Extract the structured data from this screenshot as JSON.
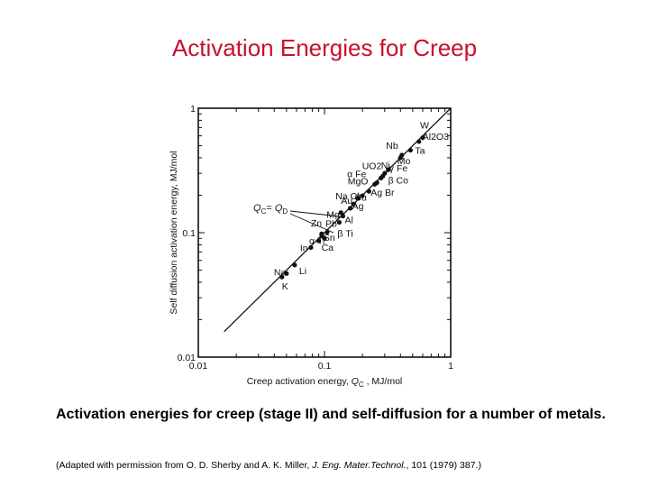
{
  "slide_title": "Activation Energies for Creep",
  "caption_pre": "Activation energies for creep (stage ",
  "caption_stage": "II",
  "caption_post": ") and self-diffusion for a number of metals.",
  "credit": {
    "pre": "(Adapted with permission from O. D. Sherby and A. K. Miller, ",
    "journal": "J. Eng. Mater.Technol.",
    "post": ", 101 (1979) 387.)"
  },
  "chart_data": {
    "type": "scatter",
    "xlabel": "Creep activation energy, Q_C , MJ/mol",
    "ylabel": "Self diffusion activation energy, MJ/mol",
    "xscale": "log",
    "yscale": "log",
    "xlim": [
      0.01,
      1
    ],
    "ylim": [
      0.01,
      1
    ],
    "xticks": [
      "0.01",
      "0.1",
      "1"
    ],
    "yticks": [
      "0.01",
      "0.1",
      "1"
    ],
    "line_label": "Q_C = Q_D",
    "line": {
      "x": [
        0.016,
        1.0
      ],
      "y": [
        0.016,
        1.0
      ]
    },
    "points": [
      {
        "label": "K",
        "x": 0.046,
        "y": 0.044
      },
      {
        "label": "Na",
        "x": 0.05,
        "y": 0.047
      },
      {
        "label": "Li",
        "x": 0.058,
        "y": 0.055
      },
      {
        "label": "In",
        "x": 0.078,
        "y": 0.076
      },
      {
        "label": "Ca",
        "x": 0.09,
        "y": 0.086
      },
      {
        "label": "Sn",
        "x": 0.095,
        "y": 0.095
      },
      {
        "label": "α Ti",
        "x": 0.1,
        "y": 0.09
      },
      {
        "label": "Pb",
        "x": 0.105,
        "y": 0.101
      },
      {
        "label": "Zn",
        "x": 0.095,
        "y": 0.098
      },
      {
        "label": "β Ti",
        "x": 0.131,
        "y": 0.121
      },
      {
        "label": "Al",
        "x": 0.14,
        "y": 0.136
      },
      {
        "label": "Mg",
        "x": 0.135,
        "y": 0.145
      },
      {
        "label": "Ag",
        "x": 0.16,
        "y": 0.157
      },
      {
        "label": "Au",
        "x": 0.17,
        "y": 0.17
      },
      {
        "label": "Cu",
        "x": 0.185,
        "y": 0.19
      },
      {
        "label": "Na Cl",
        "x": 0.2,
        "y": 0.198
      },
      {
        "label": "Ag Br",
        "x": 0.225,
        "y": 0.215
      },
      {
        "label": "MgO",
        "x": 0.25,
        "y": 0.245
      },
      {
        "label": "α Fe",
        "x": 0.26,
        "y": 0.252
      },
      {
        "label": "β Co",
        "x": 0.28,
        "y": 0.275
      },
      {
        "label": "Ni",
        "x": 0.29,
        "y": 0.285
      },
      {
        "label": "γ Fe",
        "x": 0.3,
        "y": 0.3
      },
      {
        "label": "UO2",
        "x": 0.32,
        "y": 0.32
      },
      {
        "label": "Nb",
        "x": 0.4,
        "y": 0.4
      },
      {
        "label": "Mo",
        "x": 0.41,
        "y": 0.42
      },
      {
        "label": "Ta",
        "x": 0.48,
        "y": 0.46
      },
      {
        "label": "Al2O3",
        "x": 0.56,
        "y": 0.54
      },
      {
        "label": "W",
        "x": 0.6,
        "y": 0.58
      }
    ]
  }
}
